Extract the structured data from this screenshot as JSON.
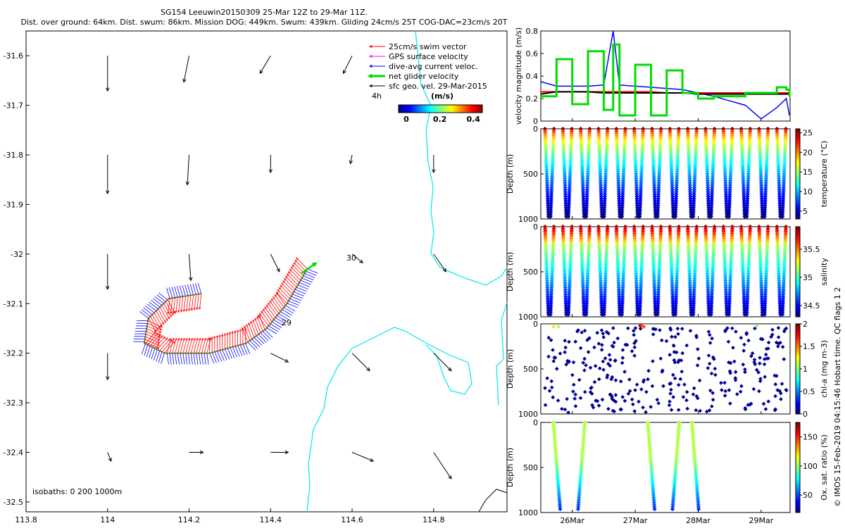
{
  "header": {
    "title": "SG154 Leeuwin20150309 25-Mar 12Z to 29-Mar 11Z.",
    "subtitle": "Dist. over ground: 64km. Dist. swum: 86km. Mission DOG: 449km. Swum: 439km. Gliding 24cm/s 25T COG-DAC=23cm/s 20T"
  },
  "map": {
    "legend": [
      {
        "label": "25cm/s swim vector",
        "color": "#ff0000"
      },
      {
        "label": "GPS surface velocity",
        "color": "#ff00ff"
      },
      {
        "label": "dive-avg current veloc.",
        "color": "#0000ff"
      },
      {
        "label": "net glider velocity",
        "color": "#00dd00"
      },
      {
        "label": "sfc geo. vel. 29-Mar-2015",
        "color": "#000000"
      }
    ],
    "colorbar_label": "(m/s)",
    "colorbar_ticks": [
      "0",
      "0.2",
      "0.4"
    ],
    "colorbar_side_label": "4h",
    "isobaths_note": "isobaths: 0   200   1000m",
    "day_markers": [
      "30",
      "29"
    ],
    "coastline_color": "#00e5ee"
  },
  "chart_data": [
    {
      "type": "map",
      "xlim": [
        113.8,
        114.98
      ],
      "ylim": [
        -32.52,
        -31.55
      ],
      "x_ticks": [
        "113.8",
        "114",
        "114.2",
        "114.4",
        "114.6",
        "114.8"
      ],
      "y_ticks": [
        "-31.6",
        "-31.7",
        "-31.8",
        "-31.9",
        "-32",
        "-32.1",
        "-32.2",
        "-32.3",
        "-32.4",
        "-32.5"
      ],
      "geostrophic_vectors": [
        {
          "lon": 114.0,
          "lat": -31.6,
          "u": 0.0,
          "v": -0.2
        },
        {
          "lon": 114.2,
          "lat": -31.6,
          "u": -0.03,
          "v": -0.15
        },
        {
          "lon": 114.4,
          "lat": -31.6,
          "u": -0.06,
          "v": -0.1
        },
        {
          "lon": 114.6,
          "lat": -31.6,
          "u": -0.05,
          "v": -0.1
        },
        {
          "lon": 114.0,
          "lat": -31.8,
          "u": 0.0,
          "v": -0.22
        },
        {
          "lon": 114.2,
          "lat": -31.8,
          "u": -0.01,
          "v": -0.17
        },
        {
          "lon": 114.4,
          "lat": -31.8,
          "u": 0.0,
          "v": -0.1
        },
        {
          "lon": 114.6,
          "lat": -31.8,
          "u": -0.01,
          "v": -0.05
        },
        {
          "lon": 114.8,
          "lat": -31.8,
          "u": 0.0,
          "v": -0.1
        },
        {
          "lon": 114.0,
          "lat": -32.0,
          "u": 0.0,
          "v": -0.2
        },
        {
          "lon": 114.2,
          "lat": -32.0,
          "u": 0.01,
          "v": -0.15
        },
        {
          "lon": 114.4,
          "lat": -32.0,
          "u": 0.05,
          "v": -0.1
        },
        {
          "lon": 114.6,
          "lat": -32.0,
          "u": 0.06,
          "v": -0.05
        },
        {
          "lon": 114.8,
          "lat": -32.0,
          "u": 0.07,
          "v": -0.1
        },
        {
          "lon": 114.0,
          "lat": -32.2,
          "u": 0.0,
          "v": -0.15
        },
        {
          "lon": 114.4,
          "lat": -32.2,
          "u": 0.1,
          "v": -0.05
        },
        {
          "lon": 114.6,
          "lat": -32.2,
          "u": 0.1,
          "v": -0.1
        },
        {
          "lon": 114.8,
          "lat": -32.2,
          "u": 0.1,
          "v": -0.1
        },
        {
          "lon": 114.0,
          "lat": -32.4,
          "u": 0.02,
          "v": -0.05
        },
        {
          "lon": 114.2,
          "lat": -32.4,
          "u": 0.08,
          "v": 0.0
        },
        {
          "lon": 114.4,
          "lat": -32.4,
          "u": 0.1,
          "v": 0.0
        },
        {
          "lon": 114.6,
          "lat": -32.4,
          "u": 0.12,
          "v": -0.05
        },
        {
          "lon": 114.8,
          "lat": -32.4,
          "u": 0.1,
          "v": -0.15
        }
      ],
      "track": [
        {
          "lon": 114.23,
          "lat": -32.08
        },
        {
          "lon": 114.15,
          "lat": -32.09
        },
        {
          "lon": 114.1,
          "lat": -32.13
        },
        {
          "lon": 114.09,
          "lat": -32.18
        },
        {
          "lon": 114.14,
          "lat": -32.2
        },
        {
          "lon": 114.25,
          "lat": -32.2
        },
        {
          "lon": 114.34,
          "lat": -32.18
        },
        {
          "lon": 114.39,
          "lat": -32.15
        },
        {
          "lon": 114.44,
          "lat": -32.1
        },
        {
          "lon": 114.49,
          "lat": -32.03
        }
      ]
    },
    {
      "type": "line",
      "ylabel": "velocity magnitude (m/s)",
      "ylim": [
        0,
        0.8
      ],
      "y_ticks": [
        "0",
        "0.2",
        "0.4",
        "0.6",
        "0.8"
      ],
      "x": [
        25.5,
        25.75,
        26.0,
        26.25,
        26.5,
        26.65,
        26.75,
        27.0,
        27.25,
        27.5,
        27.75,
        28.0,
        28.25,
        28.5,
        28.75,
        29.0,
        29.25,
        29.4,
        29.45
      ],
      "series": [
        {
          "color": "#0000ff",
          "values": [
            0.35,
            0.31,
            0.31,
            0.31,
            0.32,
            0.8,
            0.32,
            0.31,
            0.3,
            0.29,
            0.28,
            0.25,
            0.22,
            0.18,
            0.14,
            0.02,
            0.12,
            0.2,
            0.05
          ]
        },
        {
          "color": "#ff0000",
          "values": [
            0.26,
            0.26,
            0.26,
            0.26,
            0.26,
            0.26,
            0.26,
            0.26,
            0.26,
            0.25,
            0.25,
            0.25,
            0.25,
            0.25,
            0.25,
            0.25,
            0.25,
            0.25,
            0.25
          ]
        },
        {
          "color": "#000000",
          "values": [
            0.24,
            0.26,
            0.26,
            0.26,
            0.25,
            0.25,
            0.25,
            0.25,
            0.25,
            0.25,
            0.25,
            0.24,
            0.24,
            0.24,
            0.24,
            0.24,
            0.24,
            0.24,
            0.24
          ]
        },
        {
          "color": "#00dd00",
          "values": [
            0.22,
            0.55,
            0.15,
            0.62,
            0.1,
            0.68,
            0.05,
            0.5,
            0.05,
            0.45,
            0.25,
            0.2,
            0.22,
            0.22,
            0.25,
            0.25,
            0.3,
            0.28,
            0.22
          ]
        }
      ]
    },
    {
      "type": "scatter",
      "variable": "temperature",
      "ylabel": "Depth (m)",
      "ylim": [
        0,
        1000
      ],
      "y_ticks": [
        "0",
        "500",
        "1000"
      ],
      "colorbar_label": "temperature (°C)",
      "colorbar_ticks": [
        "5",
        "10",
        "15",
        "20",
        "25"
      ],
      "clim": [
        3,
        26
      ],
      "profiles_per_day": 7,
      "profile_count": 28
    },
    {
      "type": "scatter",
      "variable": "salinity",
      "ylabel": "Depth (m)",
      "ylim": [
        0,
        1000
      ],
      "y_ticks": [
        "0",
        "500",
        "1000"
      ],
      "colorbar_label": "salinity",
      "colorbar_ticks": [
        "34.5",
        "35",
        "35.5"
      ],
      "clim": [
        34.3,
        35.9
      ],
      "profile_count": 28
    },
    {
      "type": "scatter",
      "variable": "chl-a",
      "ylabel": "Depth (m)",
      "ylim": [
        0,
        1000
      ],
      "y_ticks": [
        "0",
        "500",
        "1000"
      ],
      "colorbar_label": "chl-a (mg m-3)",
      "colorbar_ticks": [
        "0",
        "0.5",
        "1",
        "1.5",
        "2"
      ],
      "clim": [
        0,
        2
      ]
    },
    {
      "type": "scatter",
      "variable": "Ox. sat. ratio",
      "ylabel": "Depth (m)",
      "ylim": [
        0,
        1000
      ],
      "y_ticks": [
        "0",
        "500",
        "1000"
      ],
      "colorbar_label": "Ox. sat. ratio (%)",
      "colorbar_ticks": [
        "50",
        "100",
        "150"
      ],
      "clim": [
        20,
        175
      ],
      "x_ticks": [
        "26Mar",
        "27Mar",
        "28Mar",
        "29Mar"
      ],
      "x_tick_values": [
        26,
        27,
        28,
        29
      ],
      "xlim": [
        25.5,
        29.46
      ],
      "profile_days": [
        25.7,
        26.2,
        27.2,
        27.7,
        27.9
      ]
    }
  ],
  "footer": {
    "credit": "© IMOS 15-Feb-2019 04:15:46 Hobart time. QC flags 1  2"
  }
}
